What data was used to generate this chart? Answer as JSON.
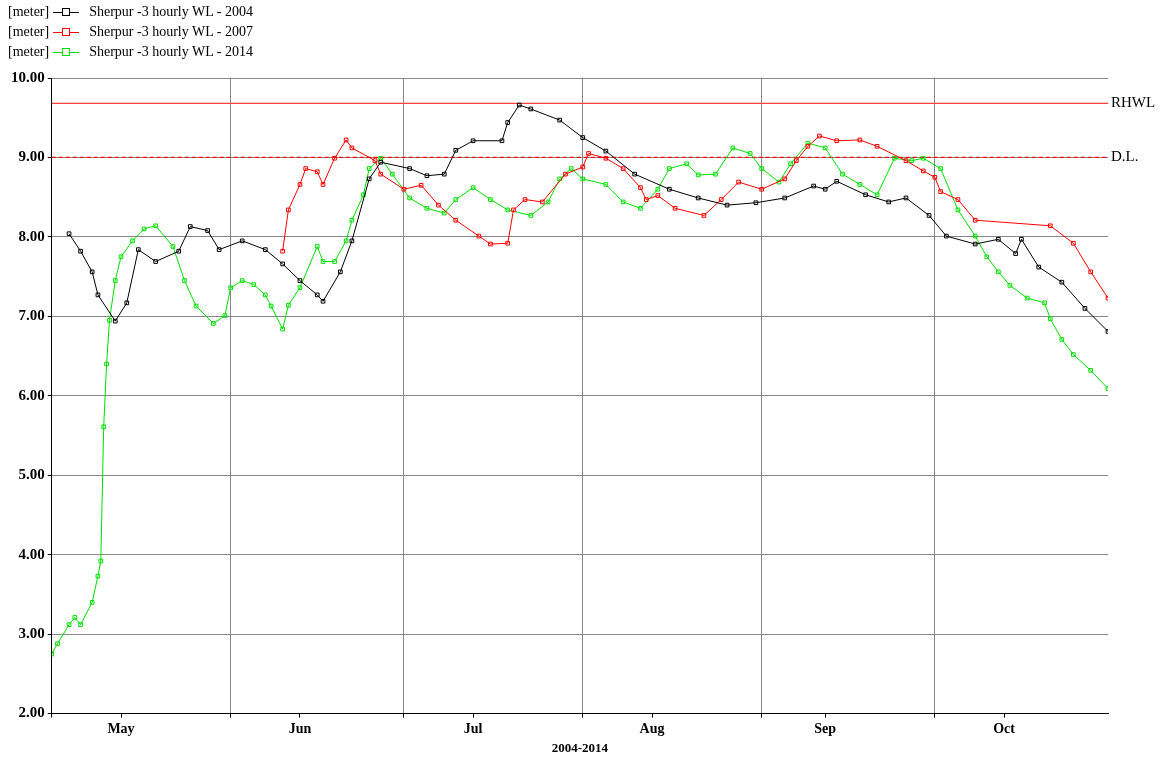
{
  "chart_data": {
    "type": "line",
    "xlabel": "2004-2014",
    "ylabel": "[meter]",
    "marker": "square",
    "grid": true,
    "legend": "top left",
    "xlim": [
      "--05-01",
      "--10-31"
    ],
    "xticks": [
      {
        "value": "--05-01",
        "label": null
      },
      {
        "value": "--05-13",
        "label": "May"
      },
      {
        "value": "--06-01",
        "label": null
      },
      {
        "value": "--06-13",
        "label": "Jun"
      },
      {
        "value": "--07-01",
        "label": null
      },
      {
        "value": "--07-13",
        "label": "Jul"
      },
      {
        "value": "--08-01",
        "label": null
      },
      {
        "value": "--08-13",
        "label": "Aug"
      },
      {
        "value": "--09-01",
        "label": null
      },
      {
        "value": "--09-12",
        "label": "Sep"
      },
      {
        "value": "--10-01",
        "label": null
      },
      {
        "value": "--10-13",
        "label": "Oct"
      }
    ],
    "ylim": [
      2,
      10
    ],
    "yticks": [
      {
        "value": 2,
        "label": "2.00"
      },
      {
        "value": 3,
        "label": "3.00"
      },
      {
        "value": 4,
        "label": "4.00"
      },
      {
        "value": 5,
        "label": "5.00"
      },
      {
        "value": 6,
        "label": "6.00"
      },
      {
        "value": 7,
        "label": "7.00"
      },
      {
        "value": 8,
        "label": "8.00"
      },
      {
        "value": 9,
        "label": "9.00"
      },
      {
        "value": 10,
        "label": "10.00"
      }
    ],
    "ref_lines": [
      {
        "axis": "y",
        "value": 9.68,
        "label": "RHWL",
        "color": "#ff4040",
        "line_style": "solid"
      },
      {
        "axis": "y",
        "value": 9.0,
        "label": "D.L.",
        "color": "#ff0000",
        "line_style": "dashed"
      }
    ],
    "series": [
      {
        "name": "Sherpur -3 hourly WL - 2004",
        "color": "#000000",
        "x": [
          "--05-04",
          "--05-06",
          "--05-08",
          "--05-09",
          "--05-12",
          "--05-14",
          "--05-16",
          "--05-19",
          "--05-23",
          "--05-25",
          "--05-28",
          "--05-30",
          "--06-03",
          "--06-07",
          "--06-10",
          "--06-13",
          "--06-16",
          "--06-17",
          "--06-20",
          "--06-22",
          "--06-25",
          "--06-27",
          "--07-02",
          "--07-05",
          "--07-08",
          "--07-10",
          "--07-13",
          "--07-18",
          "--07-19",
          "--07-21",
          "--07-23",
          "--07-28",
          "--08-01",
          "--08-05",
          "--08-10",
          "--08-16",
          "--08-21",
          "--08-26",
          "--08-31",
          "--09-05",
          "--09-10",
          "--09-12",
          "--09-14",
          "--09-19",
          "--09-23",
          "--09-26",
          "--09-30",
          "--10-03",
          "--10-08",
          "--10-12",
          "--10-15",
          "--10-16",
          "--10-19",
          "--10-23",
          "--10-27",
          "--10-31"
        ],
        "values": [
          8.04,
          7.82,
          7.56,
          7.27,
          6.94,
          7.17,
          7.84,
          7.69,
          7.82,
          8.13,
          8.08,
          7.84,
          7.95,
          7.84,
          7.66,
          7.45,
          7.27,
          7.19,
          7.56,
          7.95,
          8.73,
          8.94,
          8.86,
          8.77,
          8.79,
          9.09,
          9.21,
          9.21,
          9.44,
          9.66,
          9.61,
          9.47,
          9.25,
          9.08,
          8.79,
          8.6,
          8.49,
          8.4,
          8.43,
          8.49,
          8.64,
          8.6,
          8.7,
          8.53,
          8.44,
          8.49,
          8.27,
          8.01,
          7.91,
          7.97,
          7.79,
          7.97,
          7.62,
          7.43,
          7.1,
          6.81
        ]
      },
      {
        "name": "Sherpur -3 hourly WL - 2007",
        "color": "#ff0000",
        "x": [
          "--06-10",
          "--06-11",
          "--06-13",
          "--06-14",
          "--06-16",
          "--06-17",
          "--06-19",
          "--06-21",
          "--06-22",
          "--06-26",
          "--06-27",
          "--07-01",
          "--07-04",
          "--07-07",
          "--07-10",
          "--07-14",
          "--07-16",
          "--07-19",
          "--07-20",
          "--07-22",
          "--07-25",
          "--07-29",
          "--08-01",
          "--08-02",
          "--08-05",
          "--08-08",
          "--08-11",
          "--08-12",
          "--08-14",
          "--08-17",
          "--08-22",
          "--08-25",
          "--08-28",
          "--09-01",
          "--09-05",
          "--09-07",
          "--09-09",
          "--09-11",
          "--09-14",
          "--09-18",
          "--09-21",
          "--09-26",
          "--09-29",
          "--10-01",
          "--10-02",
          "--10-05",
          "--10-08",
          "--10-21",
          "--10-25",
          "--10-28",
          "--10-31"
        ],
        "values": [
          7.82,
          8.34,
          8.66,
          8.86,
          8.82,
          8.66,
          8.99,
          9.22,
          9.12,
          8.96,
          8.79,
          8.6,
          8.65,
          8.4,
          8.21,
          8.01,
          7.91,
          7.92,
          8.34,
          8.47,
          8.44,
          8.79,
          8.88,
          9.05,
          8.99,
          8.86,
          8.62,
          8.47,
          8.52,
          8.36,
          8.27,
          8.47,
          8.69,
          8.6,
          8.73,
          8.96,
          9.14,
          9.27,
          9.21,
          9.22,
          9.14,
          8.96,
          8.83,
          8.75,
          8.57,
          8.47,
          8.21,
          8.14,
          7.92,
          7.56,
          7.23
        ]
      },
      {
        "name": "Sherpur -3 hourly WL - 2014",
        "color": "#00e000",
        "x": [
          "--05-01",
          "--05-02",
          "--05-04",
          "--05-05",
          "--05-06",
          "--05-08",
          "--05-09T00:00",
          "--05-09T12:00",
          "--05-10T00:00",
          "--05-10T12:00",
          "--05-11",
          "--05-12",
          "--05-13",
          "--05-15",
          "--05-17",
          "--05-19",
          "--05-22",
          "--05-24",
          "--05-26",
          "--05-29",
          "--05-31",
          "--06-01",
          "--06-03",
          "--06-05",
          "--06-07",
          "--06-08",
          "--06-10",
          "--06-11",
          "--06-13",
          "--06-16",
          "--06-17",
          "--06-19",
          "--06-21",
          "--06-22",
          "--06-24",
          "--06-25",
          "--06-27",
          "--06-29",
          "--07-02",
          "--07-05",
          "--07-08",
          "--07-10",
          "--07-13",
          "--07-16",
          "--07-19",
          "--07-23",
          "--07-26",
          "--07-28",
          "--07-30",
          "--08-01",
          "--08-05",
          "--08-08",
          "--08-11",
          "--08-14",
          "--08-16",
          "--08-19",
          "--08-21",
          "--08-24",
          "--08-27",
          "--08-30",
          "--09-01",
          "--09-04",
          "--09-06",
          "--09-09",
          "--09-12",
          "--09-15",
          "--09-18",
          "--09-21",
          "--09-24",
          "--09-27",
          "--09-29",
          "--10-02",
          "--10-05",
          "--10-08",
          "--10-10",
          "--10-12",
          "--10-14",
          "--10-17",
          "--10-20",
          "--10-21",
          "--10-23",
          "--10-25",
          "--10-28",
          "--10-31"
        ],
        "values": [
          2.75,
          2.88,
          3.12,
          3.21,
          3.12,
          3.4,
          3.73,
          3.92,
          5.61,
          6.4,
          6.95,
          7.45,
          7.75,
          7.95,
          8.1,
          8.14,
          7.88,
          7.45,
          7.13,
          6.91,
          7.01,
          7.36,
          7.45,
          7.4,
          7.27,
          7.13,
          6.84,
          7.14,
          7.36,
          7.88,
          7.69,
          7.69,
          7.95,
          8.21,
          8.53,
          8.86,
          8.99,
          8.79,
          8.49,
          8.36,
          8.3,
          8.47,
          8.62,
          8.47,
          8.34,
          8.27,
          8.44,
          8.73,
          8.86,
          8.73,
          8.66,
          8.44,
          8.36,
          8.6,
          8.86,
          8.92,
          8.78,
          8.79,
          9.12,
          9.05,
          8.86,
          8.69,
          8.92,
          9.18,
          9.12,
          8.79,
          8.66,
          8.53,
          8.99,
          8.96,
          8.99,
          8.86,
          8.34,
          8.01,
          7.75,
          7.56,
          7.39,
          7.23,
          7.17,
          6.97,
          6.71,
          6.52,
          6.32,
          6.09
        ]
      }
    ]
  }
}
